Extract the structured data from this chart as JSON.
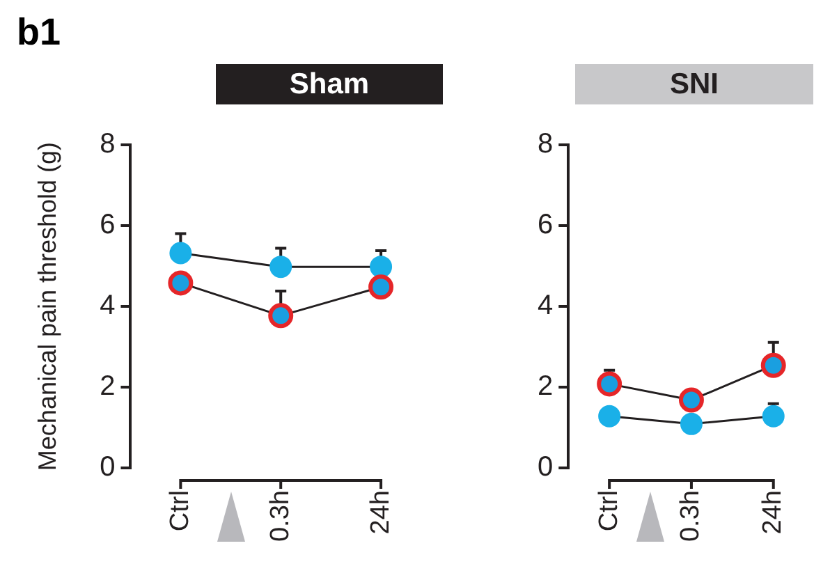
{
  "chart_data": [
    {
      "type": "line",
      "title": "Sham",
      "ylabel": "Mechanical pain threshold (g)",
      "annotations": [
        "b1"
      ],
      "categories": [
        "Ctrl",
        "0.3h",
        "24h"
      ],
      "ylim": [
        0,
        8
      ],
      "yticks": [
        0,
        2,
        4,
        6,
        8
      ],
      "marker": "circle",
      "line_style": "solid",
      "series": [
        {
          "color": "#e52629",
          "values": [
            4.58,
            3.77,
            4.48
          ],
          "errors": [
            [
              4.58,
              4.83
            ],
            [
              3.77,
              4.38
            ],
            null
          ]
        },
        {
          "color": "#1ab0e8",
          "values": [
            5.32,
            4.98,
            4.98
          ],
          "errors": [
            [
              5.32,
              5.8
            ],
            [
              4.98,
              5.44
            ],
            [
              4.98,
              5.38
            ]
          ]
        }
      ]
    },
    {
      "type": "line",
      "title": "SNI",
      "categories": [
        "Ctrl",
        "0.3h",
        "24h"
      ],
      "ylim": [
        0,
        8
      ],
      "yticks": [
        0,
        2,
        4,
        6,
        8
      ],
      "marker": "circle",
      "line_style": "solid",
      "series": [
        {
          "color": "#e52629",
          "values": [
            2.08,
            1.68,
            2.54
          ],
          "errors": [
            [
              2.08,
              2.42
            ],
            null,
            [
              2.54,
              3.11
            ]
          ]
        },
        {
          "color": "#1ab0e8",
          "values": [
            1.28,
            1.09,
            1.28
          ],
          "errors": [
            null,
            null,
            [
              1.28,
              1.59
            ]
          ]
        }
      ]
    }
  ]
}
